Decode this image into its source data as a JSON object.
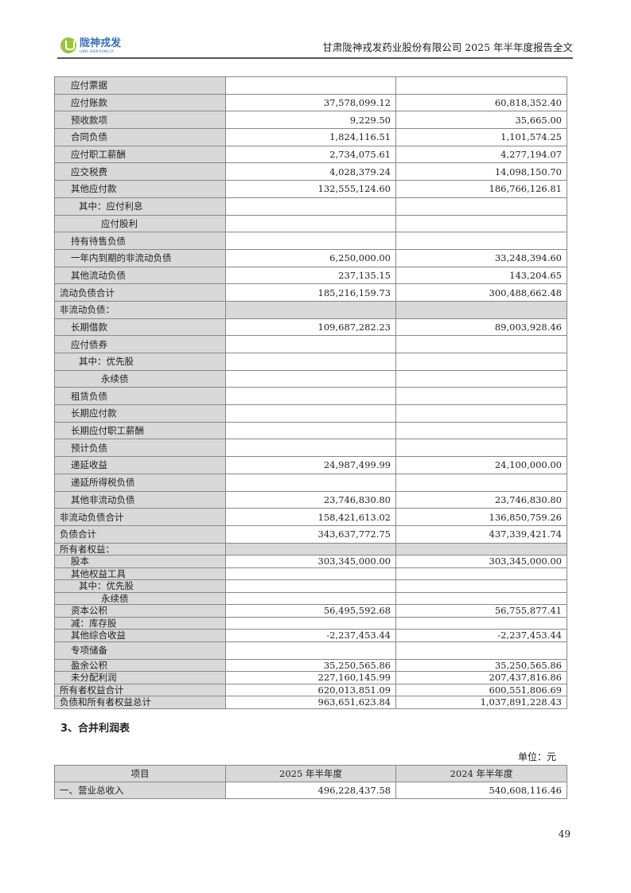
{
  "header": {
    "logo_cn": "陇神戎发",
    "logo_en": "LONG SHEN RONG FA",
    "doc_title": "甘肃陇神戎发药业股份有限公司 2025 年半年度报告全文"
  },
  "balance_sheet": {
    "rows": [
      {
        "label": "应付票据",
        "indent": 1,
        "current": "",
        "prior": ""
      },
      {
        "label": "应付账款",
        "indent": 1,
        "current": "37,578,099.12",
        "prior": "60,818,352.40"
      },
      {
        "label": "预收款项",
        "indent": 1,
        "current": "9,229.50",
        "prior": "35,665.00"
      },
      {
        "label": "合同负债",
        "indent": 1,
        "current": "1,824,116.51",
        "prior": "1,101,574.25"
      },
      {
        "label": "应付职工薪酬",
        "indent": 1,
        "current": "2,734,075.61",
        "prior": "4,277,194.07"
      },
      {
        "label": "应交税费",
        "indent": 1,
        "current": "4,028,379.24",
        "prior": "14,098,150.70"
      },
      {
        "label": "其他应付款",
        "indent": 1,
        "current": "132,555,124.60",
        "prior": "186,766,126.81"
      },
      {
        "label": "其中：应付利息",
        "indent": 2,
        "current": "",
        "prior": ""
      },
      {
        "label": "应付股利",
        "indent": 3,
        "current": "",
        "prior": ""
      },
      {
        "label": "持有待售负债",
        "indent": 1,
        "current": "",
        "prior": ""
      },
      {
        "label": "一年内到期的非流动负债",
        "indent": 1,
        "current": "6,250,000.00",
        "prior": "33,248,394.60"
      },
      {
        "label": "其他流动负债",
        "indent": 1,
        "current": "237,135.15",
        "prior": "143,204.65"
      },
      {
        "label": "流动负债合计",
        "indent": 0,
        "current": "185,216,159.73",
        "prior": "300,488,662.48"
      },
      {
        "label": "非流动负债：",
        "indent": 0,
        "section": true,
        "current": "",
        "prior": ""
      },
      {
        "label": "长期借款",
        "indent": 1,
        "current": "109,687,282.23",
        "prior": "89,003,928.46"
      },
      {
        "label": "应付债券",
        "indent": 1,
        "current": "",
        "prior": ""
      },
      {
        "label": "其中：优先股",
        "indent": 2,
        "current": "",
        "prior": ""
      },
      {
        "label": "永续债",
        "indent": 3,
        "current": "",
        "prior": ""
      },
      {
        "label": "租赁负债",
        "indent": 1,
        "current": "",
        "prior": ""
      },
      {
        "label": "长期应付款",
        "indent": 1,
        "current": "",
        "prior": ""
      },
      {
        "label": "长期应付职工薪酬",
        "indent": 1,
        "current": "",
        "prior": ""
      },
      {
        "label": "预计负债",
        "indent": 1,
        "current": "",
        "prior": ""
      },
      {
        "label": "递延收益",
        "indent": 1,
        "current": "24,987,499.99",
        "prior": "24,100,000.00"
      },
      {
        "label": "递延所得税负债",
        "indent": 1,
        "current": "",
        "prior": ""
      },
      {
        "label": "其他非流动负债",
        "indent": 1,
        "current": "23,746,830.80",
        "prior": "23,746,830.80"
      },
      {
        "label": "非流动负债合计",
        "indent": 0,
        "current": "158,421,613.02",
        "prior": "136,850,759.26"
      },
      {
        "label": "负债合计",
        "indent": 0,
        "current": "343,637,772.75",
        "prior": "437,339,421.74"
      },
      {
        "label": "所有者权益：",
        "indent": 0,
        "section": true,
        "eq": true,
        "current": "",
        "prior": ""
      },
      {
        "label": "股本",
        "indent": 1,
        "eq": true,
        "current": "303,345,000.00",
        "prior": "303,345,000.00"
      },
      {
        "label": "其他权益工具",
        "indent": 1,
        "eq": true,
        "current": "",
        "prior": ""
      },
      {
        "label": "其中：优先股",
        "indent": 2,
        "eq": true,
        "current": "",
        "prior": ""
      },
      {
        "label": "永续债",
        "indent": 3,
        "eq": true,
        "current": "",
        "prior": ""
      },
      {
        "label": "资本公积",
        "indent": 1,
        "eq": true,
        "current": "56,495,592.68",
        "prior": "56,755,877.41"
      },
      {
        "label": "减：库存股",
        "indent": 1,
        "eq": true,
        "current": "",
        "prior": ""
      },
      {
        "label": "其他综合收益",
        "indent": 1,
        "eq": true,
        "current": "-2,237,453.44",
        "prior": "-2,237,453.44"
      },
      {
        "label": "专项储备",
        "indent": 1,
        "eq": true,
        "tall": true,
        "current": "",
        "prior": ""
      },
      {
        "label": "盈余公积",
        "indent": 1,
        "eq": true,
        "current": "35,250,565.86",
        "prior": "35,250,565.86"
      },
      {
        "label": "未分配利润",
        "indent": 1,
        "eq": true,
        "current": "227,160,145.99",
        "prior": "207,437,816.86"
      },
      {
        "label": "所有者权益合计",
        "indent": 0,
        "eq": true,
        "current": "620,013,851.09",
        "prior": "600,551,806.69"
      },
      {
        "label": "负债和所有者权益总计",
        "indent": 0,
        "eq": true,
        "current": "963,651,623.84",
        "prior": "1,037,891,228.43"
      }
    ]
  },
  "income_statement": {
    "title": "3、合并利润表",
    "unit": "单位：元",
    "headers": [
      "项目",
      "2025 年半年度",
      "2024 年半年度"
    ],
    "rows": [
      {
        "label": "一、营业总收入",
        "current": "496,228,437.58",
        "prior": "540,608,116.46"
      }
    ]
  },
  "page_number": "49"
}
